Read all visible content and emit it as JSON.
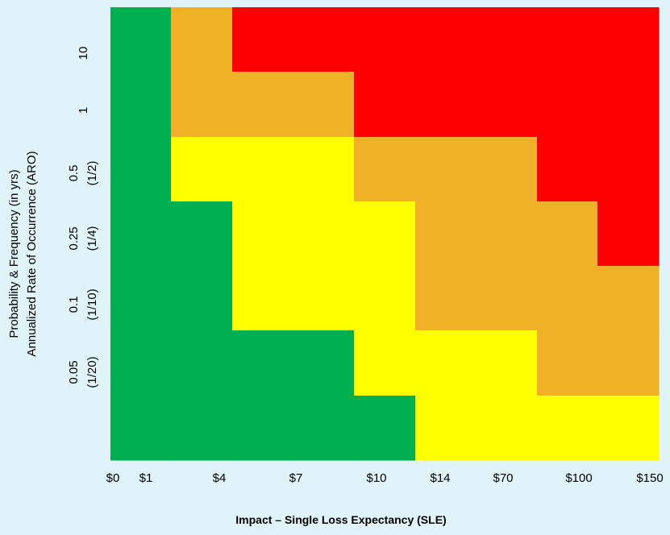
{
  "chart_data": {
    "type": "heatmap",
    "title": "",
    "xlabel": "Impact – Single Loss Expectancy (SLE)",
    "ylabel_lines": [
      "Probability & Frequency (in yrs)",
      "Annualized Rate of Occurrence (ARO)"
    ],
    "x_ticks": [
      "$0",
      "$1",
      "$4",
      "$7",
      "$10",
      "$14",
      "$70",
      "$100",
      "$150"
    ],
    "y_ticks": [
      {
        "value": "10",
        "fraction": ""
      },
      {
        "value": "1",
        "fraction": ""
      },
      {
        "value": "0.5",
        "fraction": "(1/2)"
      },
      {
        "value": "0.25",
        "fraction": "(1/4)"
      },
      {
        "value": "0.1",
        "fraction": "(1/10)"
      },
      {
        "value": "0.05",
        "fraction": "(1/20)"
      }
    ],
    "colors": {
      "green": "#00b050",
      "yellow": "#ffff00",
      "orange": "#f0b027",
      "red": "#ff0000"
    },
    "grid": [
      [
        "green",
        "orange",
        "red",
        "red",
        "red",
        "red",
        "red",
        "red",
        "red"
      ],
      [
        "green",
        "orange",
        "orange",
        "orange",
        "red",
        "red",
        "red",
        "red",
        "red"
      ],
      [
        "green",
        "yellow",
        "yellow",
        "yellow",
        "orange",
        "orange",
        "orange",
        "red",
        "red"
      ],
      [
        "green",
        "green",
        "yellow",
        "yellow",
        "yellow",
        "orange",
        "orange",
        "orange",
        "red"
      ],
      [
        "green",
        "green",
        "yellow",
        "yellow",
        "yellow",
        "orange",
        "orange",
        "orange",
        "orange"
      ],
      [
        "green",
        "green",
        "green",
        "green",
        "yellow",
        "yellow",
        "yellow",
        "orange",
        "orange"
      ],
      [
        "green",
        "green",
        "green",
        "green",
        "green",
        "yellow",
        "yellow",
        "yellow",
        "yellow"
      ]
    ],
    "grid_rows_note_free": true,
    "legend": "none",
    "gridlines": false
  }
}
